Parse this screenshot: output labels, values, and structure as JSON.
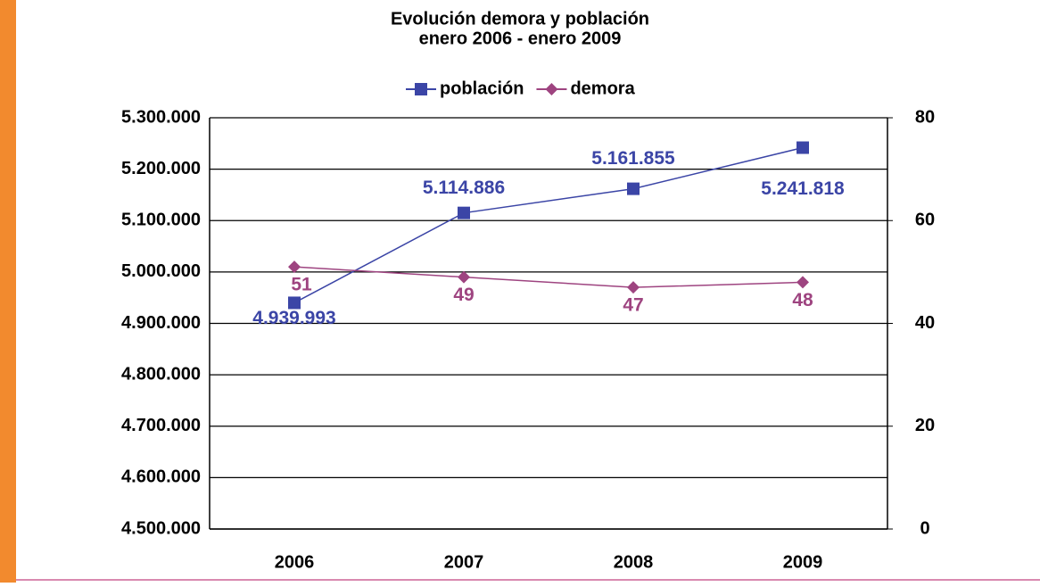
{
  "chart_data": {
    "type": "line",
    "title": "Evolución demora y población",
    "subtitle": "enero 2006 - enero 2009",
    "categories": [
      "2006",
      "2007",
      "2008",
      "2009"
    ],
    "series": [
      {
        "name": "población",
        "color": "#3b45a6",
        "marker": "square",
        "values": [
          4939993,
          5114886,
          5161855,
          5241818
        ],
        "value_labels": [
          "4.939.993",
          "5.114.886",
          "5.161.855",
          "5.241.818"
        ]
      },
      {
        "name": "demora",
        "color": "#9e4480",
        "marker": "diamond",
        "axis": "y2",
        "values": [
          51,
          49,
          47,
          48
        ]
      }
    ],
    "ylim": [
      4500000,
      5300000
    ],
    "yticks": [
      {
        "value": 4500000,
        "label": "4.500.000"
      },
      {
        "value": 4600000,
        "label": "4.600.000"
      },
      {
        "value": 4700000,
        "label": "4.700.000"
      },
      {
        "value": 4800000,
        "label": "4.800.000"
      },
      {
        "value": 4900000,
        "label": "4.900.000"
      },
      {
        "value": 5000000,
        "label": "5.000.000"
      },
      {
        "value": 5100000,
        "label": "5.100.000"
      },
      {
        "value": 5200000,
        "label": "5.200.000"
      },
      {
        "value": 5300000,
        "label": "5.300.000"
      }
    ],
    "y2lim": [
      0,
      80
    ],
    "y2ticks": [
      0,
      20,
      40,
      60,
      80
    ],
    "grid": true,
    "legend": "top"
  }
}
